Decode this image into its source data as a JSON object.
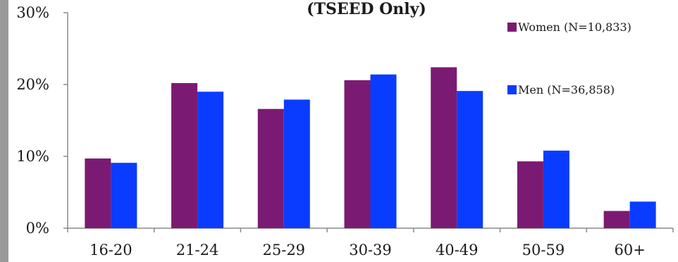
{
  "chart_data": {
    "type": "bar",
    "title": "(TSEED Only)",
    "categories": [
      "16-20",
      "21-24",
      "25-29",
      "30-39",
      "40-49",
      "50-59",
      "60+"
    ],
    "series": [
      {
        "name": "Women (N=10,833)",
        "color": "#7b1a72",
        "values": [
          9.7,
          20.2,
          16.6,
          20.6,
          22.4,
          9.3,
          2.4
        ]
      },
      {
        "name": "Men (N=36,858)",
        "color": "#0a3cff",
        "values": [
          9.1,
          19.0,
          17.9,
          21.4,
          19.1,
          10.8,
          3.7
        ]
      }
    ],
    "y_ticks": [
      "0%",
      "10%",
      "20%",
      "30%"
    ],
    "ylim": [
      0,
      30
    ],
    "legend_position": "top-right",
    "grid": false
  }
}
